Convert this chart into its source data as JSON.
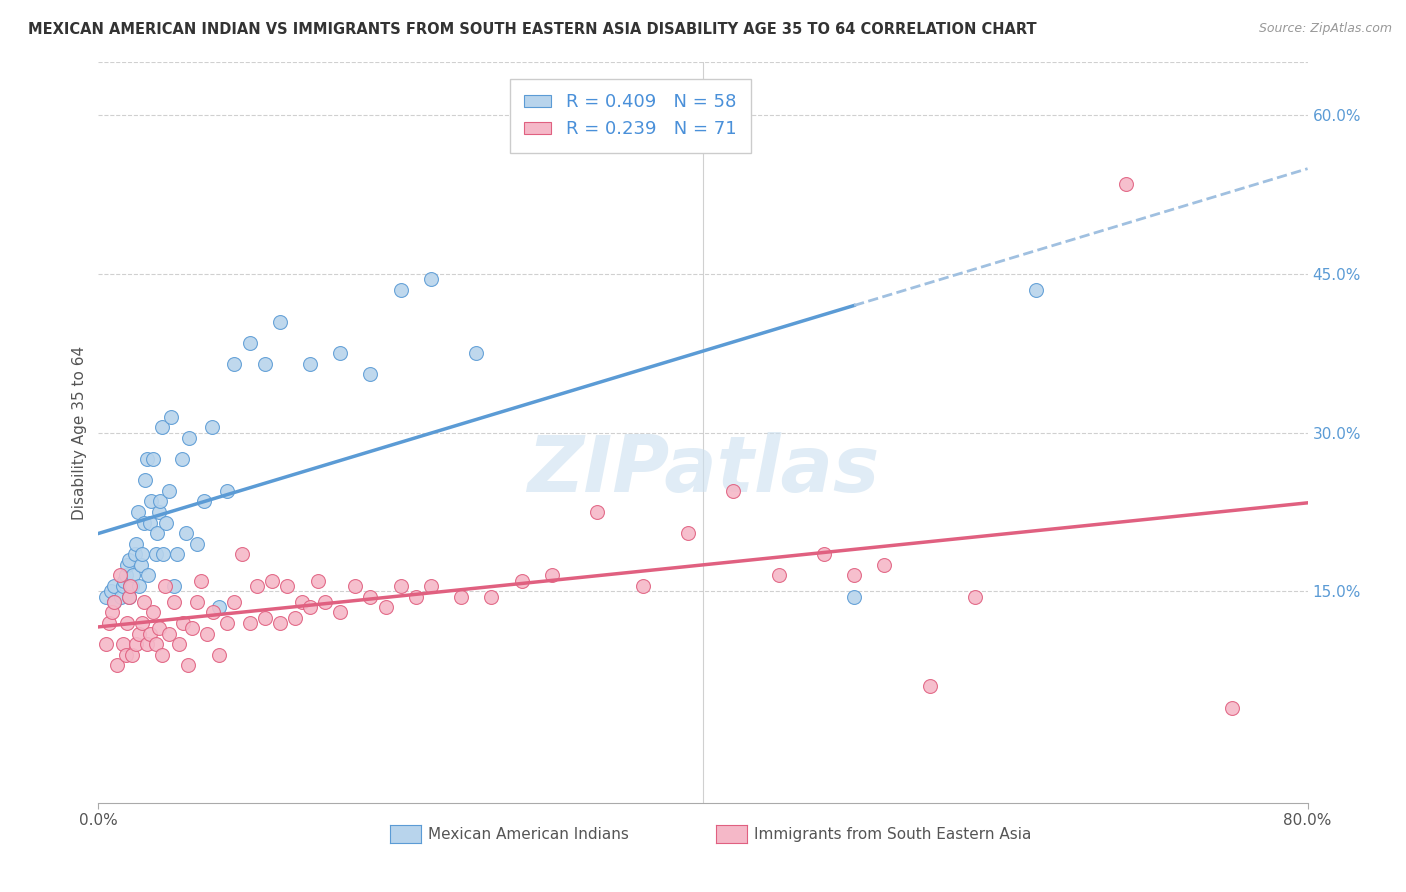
{
  "title": "MEXICAN AMERICAN INDIAN VS IMMIGRANTS FROM SOUTH EASTERN ASIA DISABILITY AGE 35 TO 64 CORRELATION CHART",
  "source": "Source: ZipAtlas.com",
  "ylabel": "Disability Age 35 to 64",
  "xlim": [
    0.0,
    0.8
  ],
  "ylim": [
    -0.05,
    0.65
  ],
  "yticks_right": [
    0.0,
    0.15,
    0.3,
    0.45,
    0.6
  ],
  "ytick_right_labels": [
    "",
    "15.0%",
    "30.0%",
    "45.0%",
    "60.0%"
  ],
  "blue_R": 0.409,
  "blue_N": 58,
  "pink_R": 0.239,
  "pink_N": 71,
  "blue_color": "#b8d4ec",
  "pink_color": "#f5b8c8",
  "blue_line_color": "#5b9bd5",
  "pink_line_color": "#e06080",
  "dashed_line_color": "#a0c0e0",
  "legend_label_blue": "Mexican American Indians",
  "legend_label_pink": "Immigrants from South Eastern Asia",
  "watermark": "ZIPatlas",
  "blue_x": [
    0.005,
    0.008,
    0.01,
    0.01,
    0.015,
    0.016,
    0.017,
    0.018,
    0.019,
    0.02,
    0.02,
    0.021,
    0.022,
    0.023,
    0.024,
    0.025,
    0.026,
    0.027,
    0.028,
    0.029,
    0.03,
    0.031,
    0.032,
    0.033,
    0.034,
    0.035,
    0.036,
    0.038,
    0.039,
    0.04,
    0.041,
    0.042,
    0.043,
    0.045,
    0.047,
    0.048,
    0.05,
    0.052,
    0.055,
    0.058,
    0.06,
    0.065,
    0.07,
    0.075,
    0.08,
    0.085,
    0.09,
    0.1,
    0.11,
    0.12,
    0.14,
    0.16,
    0.18,
    0.2,
    0.22,
    0.25,
    0.5,
    0.62
  ],
  "blue_y": [
    0.145,
    0.15,
    0.14,
    0.155,
    0.145,
    0.155,
    0.16,
    0.165,
    0.175,
    0.18,
    0.145,
    0.155,
    0.155,
    0.165,
    0.185,
    0.195,
    0.225,
    0.155,
    0.175,
    0.185,
    0.215,
    0.255,
    0.275,
    0.165,
    0.215,
    0.235,
    0.275,
    0.185,
    0.205,
    0.225,
    0.235,
    0.305,
    0.185,
    0.215,
    0.245,
    0.315,
    0.155,
    0.185,
    0.275,
    0.205,
    0.295,
    0.195,
    0.235,
    0.305,
    0.135,
    0.245,
    0.365,
    0.385,
    0.365,
    0.405,
    0.365,
    0.375,
    0.355,
    0.435,
    0.445,
    0.375,
    0.145,
    0.435
  ],
  "pink_x": [
    0.005,
    0.007,
    0.009,
    0.01,
    0.012,
    0.014,
    0.016,
    0.018,
    0.019,
    0.02,
    0.021,
    0.022,
    0.025,
    0.027,
    0.029,
    0.03,
    0.032,
    0.034,
    0.036,
    0.038,
    0.04,
    0.042,
    0.044,
    0.047,
    0.05,
    0.053,
    0.056,
    0.059,
    0.062,
    0.065,
    0.068,
    0.072,
    0.076,
    0.08,
    0.085,
    0.09,
    0.095,
    0.1,
    0.105,
    0.11,
    0.115,
    0.12,
    0.125,
    0.13,
    0.135,
    0.14,
    0.145,
    0.15,
    0.16,
    0.17,
    0.18,
    0.19,
    0.2,
    0.21,
    0.22,
    0.24,
    0.26,
    0.28,
    0.3,
    0.33,
    0.36,
    0.39,
    0.42,
    0.45,
    0.48,
    0.5,
    0.52,
    0.55,
    0.58,
    0.68,
    0.75
  ],
  "pink_y": [
    0.1,
    0.12,
    0.13,
    0.14,
    0.08,
    0.165,
    0.1,
    0.09,
    0.12,
    0.145,
    0.155,
    0.09,
    0.1,
    0.11,
    0.12,
    0.14,
    0.1,
    0.11,
    0.13,
    0.1,
    0.115,
    0.09,
    0.155,
    0.11,
    0.14,
    0.1,
    0.12,
    0.08,
    0.115,
    0.14,
    0.16,
    0.11,
    0.13,
    0.09,
    0.12,
    0.14,
    0.185,
    0.12,
    0.155,
    0.125,
    0.16,
    0.12,
    0.155,
    0.125,
    0.14,
    0.135,
    0.16,
    0.14,
    0.13,
    0.155,
    0.145,
    0.135,
    0.155,
    0.145,
    0.155,
    0.145,
    0.145,
    0.16,
    0.165,
    0.225,
    0.155,
    0.205,
    0.245,
    0.165,
    0.185,
    0.165,
    0.175,
    0.06,
    0.145,
    0.535,
    0.04
  ]
}
